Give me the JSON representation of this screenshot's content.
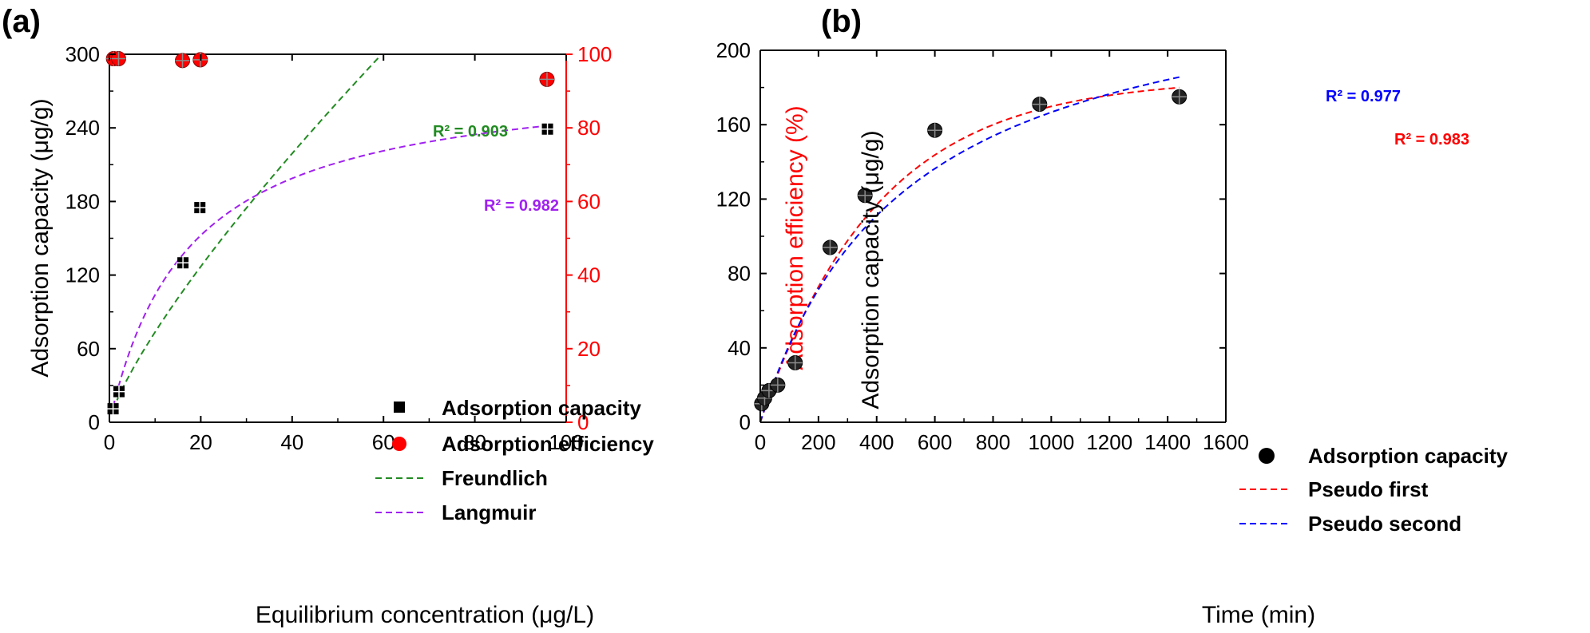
{
  "colors": {
    "black": "#000000",
    "red": "#ff0000",
    "green": "#228b22",
    "purple": "#a020f0",
    "blue": "#0000ff",
    "grey": "#8c8c8c"
  },
  "chart_data": [
    {
      "panel_label": "(a)",
      "type": "scatter",
      "xlabel": "Equilibrium concentration (μg/L)",
      "ylabel": "Adsorption capacity (μg/g)",
      "y2label": "Adsorption efficiency (%)",
      "xlim": [
        0,
        100
      ],
      "ylim": [
        0,
        300
      ],
      "y2lim": [
        0,
        100
      ],
      "xticks": [
        0,
        20,
        40,
        60,
        80,
        100
      ],
      "yticks": [
        0,
        60,
        120,
        180,
        240,
        300
      ],
      "y2ticks": [
        0,
        20,
        40,
        60,
        80,
        100
      ],
      "legend_position": "bottom-right",
      "series": [
        {
          "name": "Adsorption capacity",
          "kind": "scatter",
          "marker": "square",
          "axis": "y",
          "x": [
            0.8,
            2.1,
            16.1,
            19.8,
            95.9
          ],
          "y": [
            11,
            25,
            130,
            175,
            239
          ]
        },
        {
          "name": "Adsorption efficiency",
          "kind": "scatter",
          "marker": "circle",
          "axis": "y2",
          "x": [
            0.9,
            2.0,
            16.0,
            19.9,
            95.8
          ],
          "y": [
            98.8,
            98.8,
            98.3,
            98.5,
            93.2
          ]
        },
        {
          "name": "Freundlich",
          "kind": "fit",
          "model": "freundlich",
          "axis": "y",
          "params": {
            "K": 12.0,
            "n": 1.27
          },
          "range": [
            0.8,
            59
          ],
          "annotation": "R² = 0.903"
        },
        {
          "name": "Langmuir",
          "kind": "fit",
          "model": "langmuir",
          "axis": "y",
          "params": {
            "qmax": 286,
            "KL": 0.057
          },
          "range": [
            0.8,
            96
          ],
          "annotation": "R² = 0.982"
        }
      ]
    },
    {
      "panel_label": "(b)",
      "type": "scatter",
      "xlabel": "Time (min)",
      "ylabel": "Adsorption capacity (μg/g)",
      "xlim": [
        0,
        1600
      ],
      "ylim": [
        0,
        200
      ],
      "xticks": [
        0,
        200,
        400,
        600,
        800,
        1000,
        1200,
        1400,
        1600
      ],
      "yticks": [
        0,
        40,
        80,
        120,
        160,
        200
      ],
      "legend_position": "bottom-right",
      "series": [
        {
          "name": "Adsorption capacity",
          "kind": "scatter",
          "marker": "circle",
          "x": [
            5,
            15,
            30,
            60,
            120,
            240,
            360,
            600,
            960,
            1440
          ],
          "y": [
            10,
            13,
            17,
            20,
            32,
            94,
            122,
            157,
            171,
            175
          ]
        },
        {
          "name": "Pseudo first",
          "kind": "fit",
          "model": "pfo",
          "params": {
            "qe": 185,
            "k1": 0.0025
          },
          "range": [
            0,
            1440
          ],
          "annotation": "R² = 0.983"
        },
        {
          "name": "Pseudo second",
          "kind": "fit",
          "model": "pso",
          "params": {
            "qe": 250,
            "k2": 8e-06
          },
          "range": [
            0,
            1440
          ],
          "annotation": "R² = 0.977"
        }
      ]
    }
  ]
}
